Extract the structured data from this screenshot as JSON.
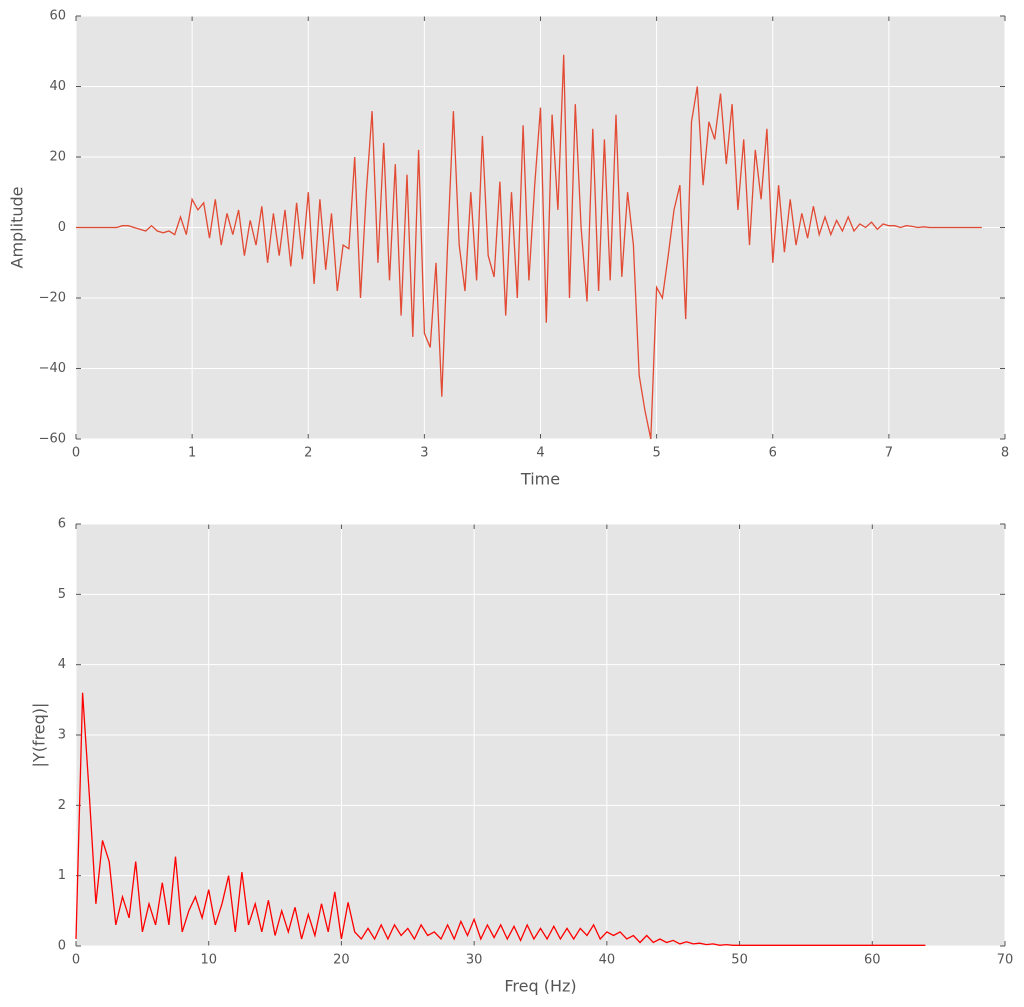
{
  "chart_data": [
    {
      "type": "line",
      "xlabel": "Time",
      "ylabel": "Amplitude",
      "color": "#e24a33",
      "grid": true,
      "xlim": [
        0,
        8
      ],
      "ylim": [
        -60,
        60
      ],
      "xticks": [
        0,
        1,
        2,
        3,
        4,
        5,
        6,
        7,
        8
      ],
      "yticks": [
        {
          "value": -60,
          "label": "−60"
        },
        {
          "value": -40,
          "label": "−40"
        },
        {
          "value": -20,
          "label": "−20"
        },
        0,
        20,
        40,
        60
      ],
      "x": [
        0,
        0.05,
        0.1,
        0.15,
        0.2,
        0.25,
        0.3,
        0.35,
        0.4,
        0.45,
        0.5,
        0.55,
        0.6,
        0.65,
        0.7,
        0.75,
        0.8,
        0.85,
        0.9,
        0.95,
        1,
        1.05,
        1.1,
        1.15,
        1.2,
        1.25,
        1.3,
        1.35,
        1.4,
        1.45,
        1.5,
        1.55,
        1.6,
        1.65,
        1.7,
        1.75,
        1.8,
        1.85,
        1.9,
        1.95,
        2,
        2.05,
        2.1,
        2.15,
        2.2,
        2.25,
        2.3,
        2.35,
        2.4,
        2.45,
        2.5,
        2.55,
        2.6,
        2.65,
        2.7,
        2.75,
        2.8,
        2.85,
        2.9,
        2.95,
        3,
        3.05,
        3.1,
        3.15,
        3.2,
        3.25,
        3.3,
        3.35,
        3.4,
        3.45,
        3.5,
        3.55,
        3.6,
        3.65,
        3.7,
        3.75,
        3.8,
        3.85,
        3.9,
        3.95,
        4,
        4.05,
        4.1,
        4.15,
        4.2,
        4.25,
        4.3,
        4.35,
        4.4,
        4.45,
        4.5,
        4.55,
        4.6,
        4.65,
        4.7,
        4.75,
        4.8,
        4.85,
        4.9,
        4.95,
        5,
        5.05,
        5.1,
        5.15,
        5.2,
        5.25,
        5.3,
        5.35,
        5.4,
        5.45,
        5.5,
        5.55,
        5.6,
        5.65,
        5.7,
        5.75,
        5.8,
        5.85,
        5.9,
        5.95,
        6,
        6.05,
        6.1,
        6.15,
        6.2,
        6.25,
        6.3,
        6.35,
        6.4,
        6.45,
        6.5,
        6.55,
        6.6,
        6.65,
        6.7,
        6.75,
        6.8,
        6.85,
        6.9,
        6.95,
        7,
        7.05,
        7.1,
        7.15,
        7.2,
        7.25,
        7.3,
        7.35,
        7.4,
        7.45,
        7.5,
        7.55,
        7.6,
        7.65,
        7.7,
        7.75,
        7.8
      ],
      "values": [
        0,
        0,
        0,
        0,
        0,
        0,
        0,
        0,
        0.5,
        0.5,
        0,
        -0.5,
        -1,
        0.5,
        -1,
        -1.5,
        -1,
        -2,
        3,
        -2,
        8,
        5,
        7,
        -3,
        8,
        -5,
        4,
        -2,
        5,
        -8,
        2,
        -5,
        6,
        -10,
        4,
        -8,
        5,
        -11,
        7,
        -9,
        10,
        -16,
        8,
        -12,
        4,
        -18,
        -5,
        -6,
        20,
        -20,
        10,
        33,
        -10,
        24,
        -15,
        18,
        -25,
        15,
        -31,
        22,
        -30,
        -34,
        -10,
        -48,
        -5,
        33,
        -5,
        -18,
        10,
        -15,
        26,
        -8,
        -14,
        13,
        -25,
        10,
        -20,
        29,
        -15,
        12,
        34,
        -27,
        32,
        5,
        49,
        -20,
        35,
        0,
        -21,
        28,
        -18,
        25,
        -15,
        32,
        -14,
        10,
        -5,
        -42,
        -52,
        -60,
        -17,
        -20,
        -8,
        5,
        12,
        -26,
        30,
        40,
        12,
        30,
        25,
        38,
        18,
        35,
        5,
        25,
        -5,
        22,
        8,
        28,
        -10,
        12,
        -7,
        8,
        -5,
        4,
        -3,
        6,
        -2,
        3,
        -2,
        2,
        -1,
        3,
        -1,
        1,
        0,
        1.5,
        -0.5,
        1,
        0.5,
        0.5,
        0,
        0.5,
        0.3,
        0,
        0.2,
        0,
        0,
        0,
        0,
        0,
        0,
        0,
        0,
        0,
        0
      ]
    },
    {
      "type": "line",
      "xlabel": "Freq (Hz)",
      "ylabel": "|Y(freq)|",
      "color": "#ff0000",
      "grid": true,
      "xlim": [
        0,
        70
      ],
      "ylim": [
        0,
        6
      ],
      "xticks": [
        0,
        10,
        20,
        30,
        40,
        50,
        60,
        70
      ],
      "yticks": [
        0,
        1,
        2,
        3,
        4,
        5,
        6
      ],
      "x": [
        0,
        0.5,
        1,
        1.5,
        2,
        2.5,
        3,
        3.5,
        4,
        4.5,
        5,
        5.5,
        6,
        6.5,
        7,
        7.5,
        8,
        8.5,
        9,
        9.5,
        10,
        10.5,
        11,
        11.5,
        12,
        12.5,
        13,
        13.5,
        14,
        14.5,
        15,
        15.5,
        16,
        16.5,
        17,
        17.5,
        18,
        18.5,
        19,
        19.5,
        20,
        20.5,
        21,
        21.5,
        22,
        22.5,
        23,
        23.5,
        24,
        24.5,
        25,
        25.5,
        26,
        26.5,
        27,
        27.5,
        28,
        28.5,
        29,
        29.5,
        30,
        30.5,
        31,
        31.5,
        32,
        32.5,
        33,
        33.5,
        34,
        34.5,
        35,
        35.5,
        36,
        36.5,
        37,
        37.5,
        38,
        38.5,
        39,
        39.5,
        40,
        40.5,
        41,
        41.5,
        42,
        42.5,
        43,
        43.5,
        44,
        44.5,
        45,
        45.5,
        46,
        46.5,
        47,
        47.5,
        48,
        48.5,
        49,
        49.5,
        50,
        51,
        52,
        53,
        54,
        55,
        56,
        57,
        58,
        59,
        60,
        61,
        62,
        63,
        64
      ],
      "values": [
        0.1,
        3.6,
        2.15,
        0.6,
        1.5,
        1.2,
        0.3,
        0.7,
        0.4,
        1.2,
        0.2,
        0.6,
        0.3,
        0.9,
        0.3,
        1.27,
        0.2,
        0.5,
        0.7,
        0.4,
        0.8,
        0.3,
        0.6,
        1.0,
        0.2,
        1.05,
        0.3,
        0.6,
        0.2,
        0.65,
        0.15,
        0.5,
        0.2,
        0.55,
        0.1,
        0.45,
        0.15,
        0.6,
        0.2,
        0.77,
        0.1,
        0.62,
        0.2,
        0.1,
        0.25,
        0.1,
        0.3,
        0.1,
        0.3,
        0.15,
        0.25,
        0.1,
        0.3,
        0.15,
        0.2,
        0.1,
        0.3,
        0.1,
        0.35,
        0.15,
        0.38,
        0.1,
        0.3,
        0.12,
        0.3,
        0.1,
        0.28,
        0.08,
        0.3,
        0.1,
        0.25,
        0.1,
        0.28,
        0.1,
        0.25,
        0.1,
        0.25,
        0.15,
        0.3,
        0.1,
        0.2,
        0.15,
        0.2,
        0.1,
        0.15,
        0.05,
        0.15,
        0.05,
        0.1,
        0.05,
        0.08,
        0.03,
        0.06,
        0.03,
        0.04,
        0.02,
        0.03,
        0.01,
        0.02,
        0.01,
        0.01,
        0.01,
        0.01,
        0.01,
        0.01,
        0.01,
        0.01,
        0.01,
        0.01,
        0.01,
        0.01,
        0.01,
        0.01,
        0.01,
        0.01
      ]
    }
  ]
}
